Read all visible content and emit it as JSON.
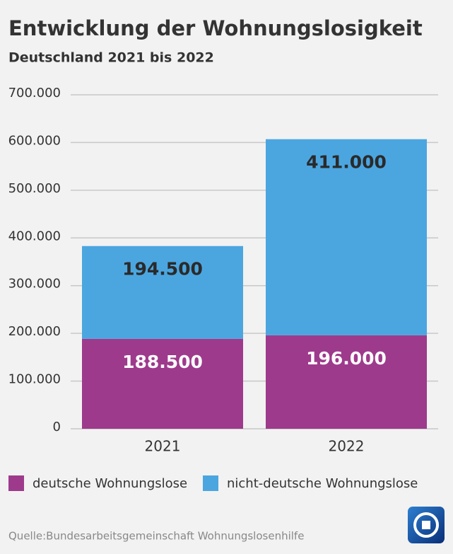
{
  "chart_data": {
    "type": "stacked-bar",
    "title": "Entwicklung der Wohnungslosigkeit",
    "subtitle": "Deutschland 2021 bis 2022",
    "source": "Quelle:Bundesarbeitsgemeinschaft Wohnungslosenhilfe",
    "categories": [
      "2021",
      "2022"
    ],
    "series": [
      {
        "name": "deutsche Wohnungslose",
        "color": "#9e3a8c",
        "values": [
          188500,
          196000
        ],
        "value_labels": [
          "188.500",
          "196.000"
        ]
      },
      {
        "name": "nicht-deutsche Wohnungslose",
        "color": "#4ba6e0",
        "values": [
          194500,
          411000
        ],
        "value_labels": [
          "194.500",
          "411.000"
        ]
      }
    ],
    "ylim": [
      0,
      700000
    ],
    "yticks": [
      0,
      {
        "value": 100000,
        "label": "100.000"
      },
      {
        "value": 200000,
        "label": "200.000"
      },
      {
        "value": 300000,
        "label": "300.000"
      },
      {
        "value": 400000,
        "label": "400.000"
      },
      {
        "value": 500000,
        "label": "500.000"
      },
      {
        "value": 600000,
        "label": "600.000"
      },
      {
        "value": 700000,
        "label": "700.000"
      }
    ],
    "grid": true
  }
}
